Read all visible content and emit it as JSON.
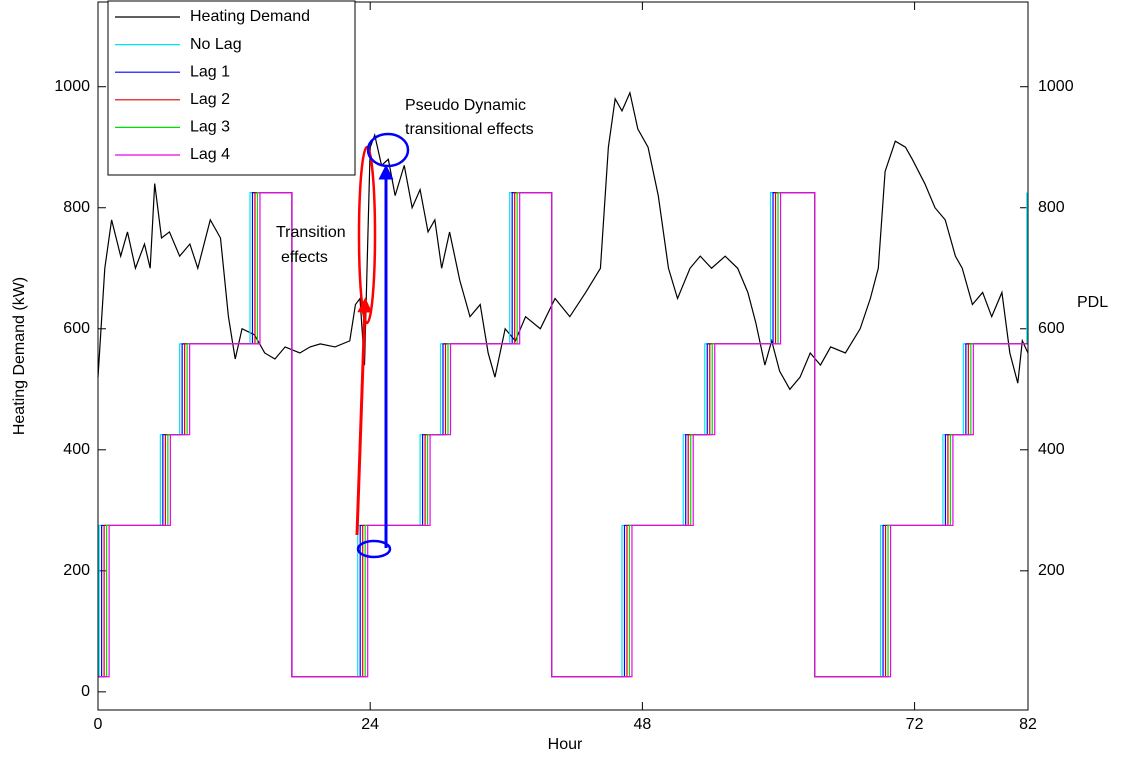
{
  "chart_data": {
    "type": "line",
    "xlabel": "Hour",
    "ylabel": "Heating Demand (kW)",
    "y2label": "PDL",
    "xlim": [
      0,
      82
    ],
    "xticks": [
      0,
      24,
      48,
      72,
      82
    ],
    "ylim": [
      -30,
      1140
    ],
    "yticks": [
      0,
      200,
      400,
      600,
      800,
      1000
    ],
    "y2lim": [
      -30,
      1140
    ],
    "y2ticks": [
      200,
      400,
      600,
      800,
      1000
    ],
    "legend": "upper left",
    "annotations": [
      {
        "lines": [
          "Pseudo Dynamic",
          "transitional effects"
        ]
      },
      {
        "lines": [
          "Transition",
          "effects"
        ]
      }
    ],
    "series": [
      {
        "name": "Heating Demand",
        "color": "#000000",
        "x": [
          0,
          0.6,
          1.2,
          2,
          2.6,
          3.3,
          4.1,
          4.6,
          5,
          5.6,
          6.3,
          7.2,
          8.1,
          8.8,
          9.9,
          10.8,
          11.5,
          12.1,
          12.7,
          13.8,
          14.7,
          15.6,
          16.5,
          17.8,
          18.7,
          19.6,
          20.9,
          22.2,
          22.7,
          23.1,
          23.5,
          24,
          24.4,
          25,
          25.6,
          26.2,
          27,
          27.7,
          28.4,
          29.1,
          29.7,
          30.3,
          31,
          31.9,
          32.8,
          33.7,
          34.4,
          35,
          35.9,
          36.8,
          37.7,
          39,
          40.3,
          41.6,
          43,
          44.3,
          45,
          45.6,
          46.2,
          46.9,
          47.6,
          48.5,
          49.4,
          50.3,
          51.1,
          52.2,
          53.1,
          54.1,
          55.3,
          56.4,
          57.3,
          58,
          58.8,
          59.4,
          60.1,
          61,
          61.9,
          62.8,
          63.7,
          64.6,
          65.9,
          67.2,
          68.1,
          68.8,
          69.4,
          70.3,
          71.2,
          71.8,
          72.9,
          73.8,
          74.7,
          75.6,
          76.2,
          77.1,
          78,
          78.8,
          79.7,
          80.4,
          81.1,
          81.5,
          82
        ],
        "values": [
          520,
          700,
          780,
          720,
          760,
          700,
          740,
          700,
          840,
          750,
          760,
          720,
          740,
          700,
          780,
          750,
          620,
          550,
          600,
          590,
          560,
          550,
          570,
          560,
          570,
          575,
          570,
          580,
          640,
          650,
          540,
          900,
          920,
          870,
          880,
          820,
          870,
          800,
          830,
          760,
          780,
          700,
          760,
          680,
          620,
          640,
          560,
          520,
          600,
          580,
          620,
          600,
          650,
          620,
          660,
          700,
          900,
          980,
          960,
          990,
          930,
          900,
          820,
          700,
          650,
          700,
          720,
          700,
          720,
          700,
          660,
          610,
          540,
          580,
          530,
          500,
          520,
          560,
          540,
          570,
          560,
          600,
          650,
          700,
          860,
          910,
          900,
          880,
          840,
          800,
          780,
          720,
          700,
          640,
          660,
          620,
          660,
          560,
          510,
          580,
          560
        ]
      },
      {
        "name": "No Lag",
        "color": "#00e5ee",
        "axis": "y2",
        "x": [
          0,
          0.1,
          0.1,
          5.5,
          5.5,
          7.2,
          7.2,
          13.4,
          13.4,
          17.1,
          17.1,
          22.9,
          22.9,
          28.4,
          28.4,
          30.2,
          30.2,
          36.3,
          36.3,
          40,
          40,
          46.2,
          46.2,
          51.6,
          51.6,
          53.5,
          53.5,
          59.3,
          59.3,
          63.2,
          63.2,
          69,
          69,
          74.5,
          74.5,
          76.3,
          76.3,
          81.9,
          81.9
        ],
        "values": [
          25,
          25,
          275,
          275,
          425,
          425,
          575,
          575,
          825,
          825,
          25,
          25,
          275,
          275,
          425,
          425,
          575,
          575,
          825,
          825,
          25,
          25,
          275,
          275,
          425,
          425,
          575,
          575,
          825,
          825,
          25,
          25,
          275,
          275,
          425,
          425,
          575,
          575,
          825
        ]
      },
      {
        "name": "Lag 1",
        "color": "#0000ff",
        "axis": "y2",
        "x": [
          0,
          0.32,
          0.32,
          5.72,
          5.72,
          7.42,
          7.42,
          13.62,
          13.62,
          17.1,
          17.1,
          23.12,
          23.12,
          28.62,
          28.62,
          30.42,
          30.42,
          36.52,
          36.52,
          40,
          40,
          46.42,
          46.42,
          51.82,
          51.82,
          53.72,
          53.72,
          59.52,
          59.52,
          63.2,
          63.2,
          69.22,
          69.22,
          74.72,
          74.72,
          76.52,
          76.52,
          82
        ],
        "values": [
          25,
          25,
          275,
          275,
          425,
          425,
          575,
          575,
          825,
          825,
          25,
          25,
          275,
          275,
          425,
          425,
          575,
          575,
          825,
          825,
          25,
          25,
          275,
          275,
          425,
          425,
          575,
          575,
          825,
          825,
          25,
          25,
          275,
          275,
          425,
          425,
          575,
          575
        ]
      },
      {
        "name": "Lag 2",
        "color": "#e00000",
        "axis": "y2",
        "x": [
          0,
          0.54,
          0.54,
          5.94,
          5.94,
          7.64,
          7.64,
          13.84,
          13.84,
          17.1,
          17.1,
          23.34,
          23.34,
          28.84,
          28.84,
          30.64,
          30.64,
          36.74,
          36.74,
          40,
          40,
          46.64,
          46.64,
          52.04,
          52.04,
          53.94,
          53.94,
          59.74,
          59.74,
          63.2,
          63.2,
          69.44,
          69.44,
          74.94,
          74.94,
          76.74,
          76.74,
          82
        ],
        "values": [
          25,
          25,
          275,
          275,
          425,
          425,
          575,
          575,
          825,
          825,
          25,
          25,
          275,
          275,
          425,
          425,
          575,
          575,
          825,
          825,
          25,
          25,
          275,
          275,
          425,
          425,
          575,
          575,
          825,
          825,
          25,
          25,
          275,
          275,
          425,
          425,
          575,
          575
        ]
      },
      {
        "name": "Lag 3",
        "color": "#00dd00",
        "axis": "y2",
        "x": [
          0,
          0.76,
          0.76,
          6.16,
          6.16,
          7.86,
          7.86,
          14.06,
          14.06,
          17.1,
          17.1,
          23.56,
          23.56,
          29.06,
          29.06,
          30.86,
          30.86,
          36.96,
          36.96,
          40,
          40,
          46.86,
          46.86,
          52.26,
          52.26,
          54.16,
          54.16,
          59.96,
          59.96,
          63.2,
          63.2,
          69.66,
          69.66,
          75.16,
          75.16,
          76.96,
          76.96,
          82
        ],
        "values": [
          25,
          25,
          275,
          275,
          425,
          425,
          575,
          575,
          825,
          825,
          25,
          25,
          275,
          275,
          425,
          425,
          575,
          575,
          825,
          825,
          25,
          25,
          275,
          275,
          425,
          425,
          575,
          575,
          825,
          825,
          25,
          25,
          275,
          275,
          425,
          425,
          575,
          575
        ]
      },
      {
        "name": "Lag 4",
        "color": "#ee00ee",
        "axis": "y2",
        "x": [
          0,
          0.98,
          0.98,
          6.38,
          6.38,
          8.08,
          8.08,
          14.28,
          14.28,
          17.1,
          17.1,
          23.78,
          23.78,
          29.28,
          29.28,
          31.08,
          31.08,
          37.18,
          37.18,
          40,
          40,
          47.08,
          47.08,
          52.48,
          52.48,
          54.38,
          54.38,
          60.18,
          60.18,
          63.2,
          63.2,
          69.88,
          69.88,
          75.38,
          75.38,
          77.18,
          77.18,
          82
        ],
        "values": [
          25,
          25,
          275,
          275,
          425,
          425,
          575,
          575,
          825,
          825,
          25,
          25,
          275,
          275,
          425,
          425,
          575,
          575,
          825,
          825,
          25,
          25,
          275,
          275,
          425,
          425,
          575,
          575,
          825,
          825,
          25,
          25,
          275,
          275,
          425,
          425,
          575,
          575
        ]
      }
    ]
  }
}
